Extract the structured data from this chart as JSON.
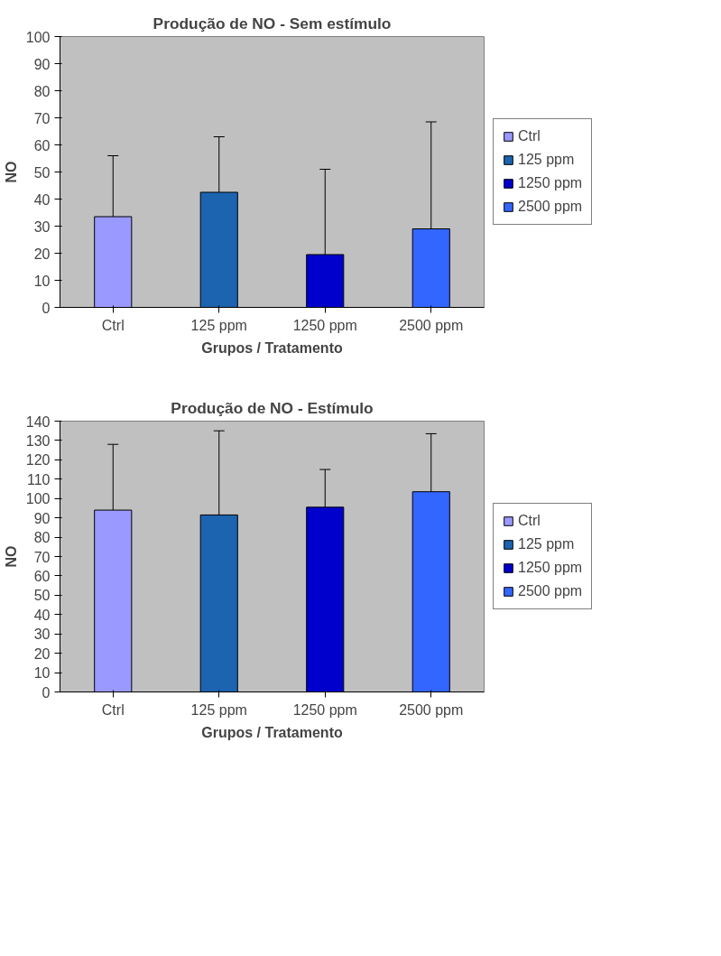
{
  "chart_data": [
    {
      "type": "bar",
      "title": "Produção de NO - Sem estímulo",
      "xlabel": "Grupos / Tratamento",
      "ylabel": "NO",
      "categories": [
        "Ctrl",
        "125 ppm",
        "1250 ppm",
        "2500 ppm"
      ],
      "ylim": [
        0,
        100
      ],
      "yticks": [
        0,
        10,
        20,
        30,
        40,
        50,
        60,
        70,
        80,
        90,
        100
      ],
      "grid": false,
      "legend": "right",
      "series": [
        {
          "name": "Ctrl",
          "color": "#9999ff",
          "values": [
            33.5,
            null,
            null,
            null
          ],
          "errors": [
            [
              33.5,
              56
            ],
            null,
            null,
            null
          ]
        },
        {
          "name": "125 ppm",
          "color": "#1c63b0",
          "values": [
            null,
            42.5,
            null,
            null
          ],
          "errors": [
            null,
            [
              42.5,
              63
            ],
            null,
            null
          ]
        },
        {
          "name": "1250 ppm",
          "color": "#0000cc",
          "values": [
            null,
            null,
            19.5,
            null
          ],
          "errors": [
            null,
            null,
            [
              19.5,
              51
            ],
            null
          ]
        },
        {
          "name": "2500 ppm",
          "color": "#3366ff",
          "values": [
            null,
            null,
            null,
            29
          ],
          "errors": [
            null,
            null,
            null,
            [
              29,
              68.5
            ]
          ]
        }
      ]
    },
    {
      "type": "bar",
      "title": "Produção de NO - Estímulo",
      "xlabel": "Grupos / Tratamento",
      "ylabel": "NO",
      "categories": [
        "Ctrl",
        "125 ppm",
        "1250 ppm",
        "2500 ppm"
      ],
      "ylim": [
        0,
        140
      ],
      "yticks": [
        0,
        10,
        20,
        30,
        40,
        50,
        60,
        70,
        80,
        90,
        100,
        110,
        120,
        130,
        140
      ],
      "grid": false,
      "legend": "right",
      "series": [
        {
          "name": "Ctrl",
          "color": "#9999ff",
          "values": [
            94,
            null,
            null,
            null
          ],
          "errors": [
            [
              94,
              128
            ],
            null,
            null,
            null
          ]
        },
        {
          "name": "125 ppm",
          "color": "#1c63b0",
          "values": [
            null,
            91.5,
            null,
            null
          ],
          "errors": [
            null,
            [
              91.5,
              135
            ],
            null,
            null
          ]
        },
        {
          "name": "1250 ppm",
          "color": "#0000cc",
          "values": [
            null,
            null,
            95.5,
            null
          ],
          "errors": [
            null,
            null,
            [
              95.5,
              115
            ],
            null
          ]
        },
        {
          "name": "2500 ppm",
          "color": "#3366ff",
          "values": [
            null,
            null,
            null,
            103.5
          ],
          "errors": [
            null,
            null,
            null,
            [
              103.5,
              133.5
            ]
          ]
        }
      ]
    }
  ]
}
